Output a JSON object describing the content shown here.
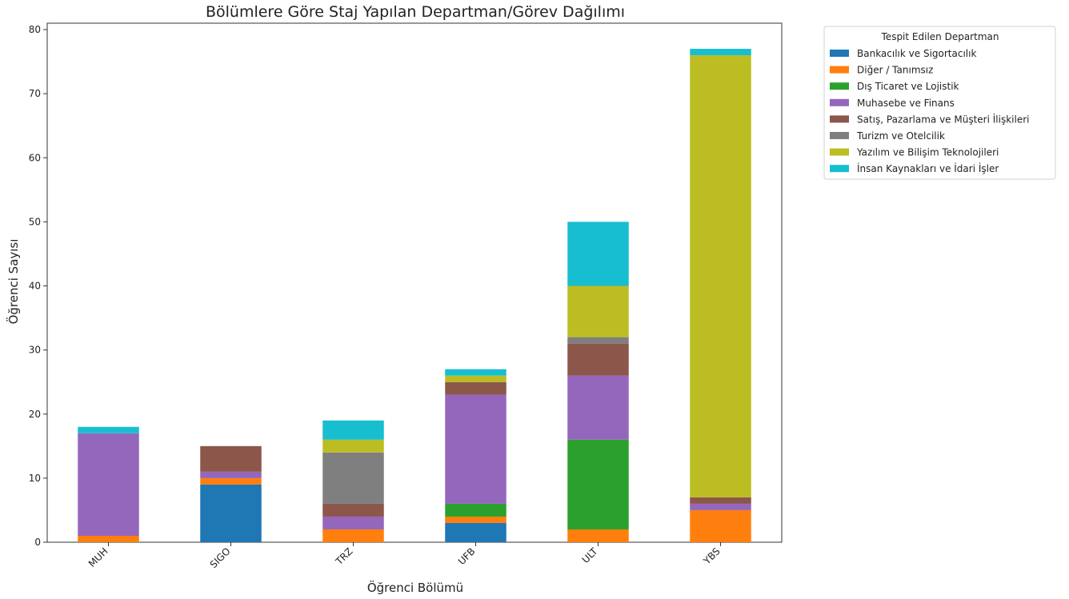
{
  "chart_data": {
    "type": "bar",
    "stacked": true,
    "title": "Bölümlere Göre Staj Yapılan Departman/Görev Dağılımı",
    "xlabel": "Öğrenci Bölümü",
    "ylabel": "Öğrenci Sayısı",
    "ylim": [
      0,
      81
    ],
    "yticks": [
      0,
      10,
      20,
      30,
      40,
      50,
      60,
      70,
      80
    ],
    "categories": [
      "MUH",
      "SIGO",
      "TRZ",
      "UFB",
      "ULT",
      "YBS"
    ],
    "legend_title": "Tespit Edilen Departman",
    "legend_position": "outside-top-right",
    "grid": false,
    "series": [
      {
        "name": "Bankacılık ve Sigortacılık",
        "color": "#1f77b4",
        "values": [
          0,
          9,
          0,
          3,
          0,
          0
        ]
      },
      {
        "name": "Diğer / Tanımsız",
        "color": "#ff7f0e",
        "values": [
          1,
          1,
          2,
          1,
          2,
          5
        ]
      },
      {
        "name": "Dış Ticaret ve Lojistik",
        "color": "#2ca02c",
        "values": [
          0,
          0,
          0,
          2,
          14,
          0
        ]
      },
      {
        "name": "Muhasebe ve Finans",
        "color": "#9467bd",
        "values": [
          16,
          1,
          2,
          17,
          10,
          1
        ]
      },
      {
        "name": "Satış, Pazarlama ve Müşteri İlişkileri",
        "color": "#8c564b",
        "values": [
          0,
          4,
          2,
          2,
          5,
          1
        ]
      },
      {
        "name": "Turizm ve Otelcilik",
        "color": "#7f7f7f",
        "values": [
          0,
          0,
          8,
          0,
          1,
          0
        ]
      },
      {
        "name": "Yazılım ve Bilişim Teknolojileri",
        "color": "#bcbd22",
        "values": [
          0,
          0,
          2,
          1,
          8,
          69
        ]
      },
      {
        "name": "İnsan Kaynakları ve İdari İşler",
        "color": "#17becf",
        "values": [
          1,
          0,
          3,
          1,
          10,
          1
        ]
      }
    ]
  }
}
